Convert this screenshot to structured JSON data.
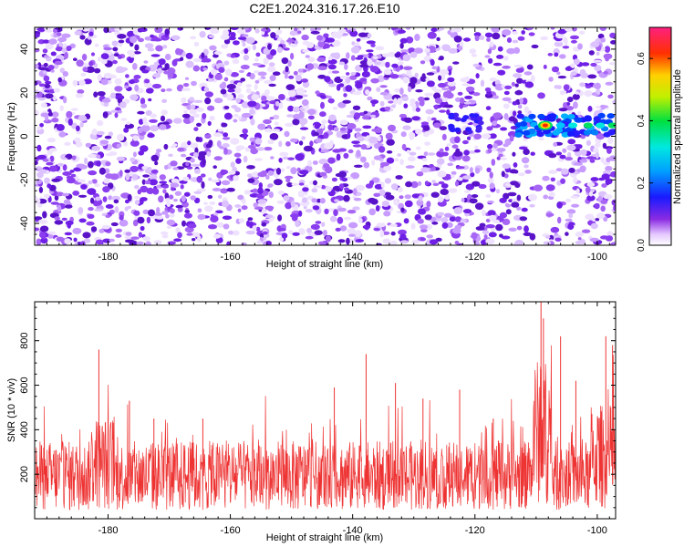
{
  "figure": {
    "title": "C2E1.2024.316.17.26.E10"
  },
  "colors": {
    "snr_line": "#ee3333",
    "spectrogram_points": "#7a1ff0",
    "axes": "#000000"
  },
  "chart_data": [
    {
      "type": "heatmap",
      "title": "C2E1.2024.316.17.26.E10",
      "xlabel": "Height of straight line (km)",
      "ylabel": "Frequency (Hz)",
      "xlim": [
        -192,
        -97
      ],
      "ylim": [
        -50,
        50
      ],
      "xticks": [
        -180,
        -160,
        -140,
        -120,
        -100
      ],
      "yticks": [
        -40,
        -20,
        0,
        20,
        40
      ],
      "colorbar": {
        "label": "Normalized spectral amplitude",
        "range": [
          0.0,
          0.7
        ],
        "ticks": [
          0.0,
          0.2,
          0.4,
          0.6
        ],
        "colormap": "white-purple-blue-cyan-green-yellow-red-magenta"
      },
      "features": [
        {
          "description_level": "noise background",
          "amplitude_range": [
            0.0,
            0.1
          ]
        },
        {
          "x_range": [
            -124,
            -119
          ],
          "y_center": 6,
          "amplitude": 0.15
        },
        {
          "x_range": [
            -113,
            -97
          ],
          "y_center": 5,
          "amplitude_peak": 0.6,
          "peak_x": -108.5
        }
      ],
      "gap_x_range": [
        -110.5,
        -108.3
      ]
    },
    {
      "type": "line",
      "xlabel": "Height of straight line (km)",
      "ylabel": "SNR (10 * v/v)",
      "xlim": [
        -192,
        -97
      ],
      "ylim": [
        0,
        975
      ],
      "xticks": [
        -180,
        -160,
        -140,
        -120,
        -100
      ],
      "yticks": [
        200,
        400,
        600,
        800
      ],
      "series": [
        {
          "baseline_mean": 190,
          "spikes": [
            {
              "x": -181.5,
              "y": 760
            },
            {
              "x": -176.5,
              "y": 530
            },
            {
              "x": -172.5,
              "y": 450
            },
            {
              "x": -164.5,
              "y": 450
            },
            {
              "x": -143.0,
              "y": 590
            },
            {
              "x": -137.8,
              "y": 740
            },
            {
              "x": -133.0,
              "y": 610
            },
            {
              "x": -128.5,
              "y": 540
            },
            {
              "x": -122.5,
              "y": 580
            },
            {
              "x": -117.0,
              "y": 450
            },
            {
              "x": -109.2,
              "y": 975
            },
            {
              "x": -108.8,
              "y": 900
            },
            {
              "x": -106.0,
              "y": 820
            },
            {
              "x": -103.5,
              "y": 620
            },
            {
              "x": -98.6,
              "y": 820
            },
            {
              "x": -97.5,
              "y": 780
            }
          ]
        }
      ]
    }
  ]
}
